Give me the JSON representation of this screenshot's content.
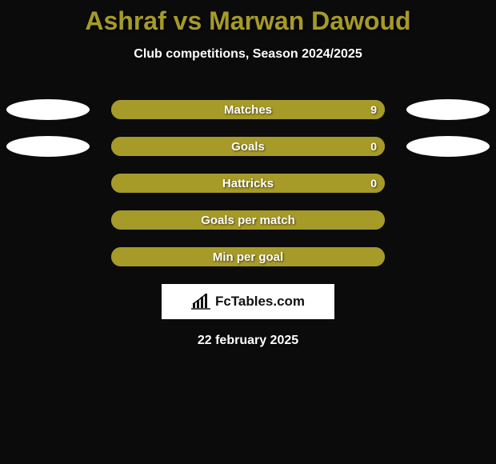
{
  "title": "Ashraf vs Marwan Dawoud",
  "title_color": "#a69a28",
  "subtitle": "Club competitions, Season 2024/2025",
  "bar_bg_color": "#a69a28",
  "bar_fill_color": "#a69a28",
  "ellipse_rows": [
    0,
    1
  ],
  "rows": [
    {
      "label": "Matches",
      "right_value": "9",
      "fill_pct": 100
    },
    {
      "label": "Goals",
      "right_value": "0",
      "fill_pct": 100
    },
    {
      "label": "Hattricks",
      "right_value": "0",
      "fill_pct": 100
    },
    {
      "label": "Goals per match",
      "right_value": "",
      "fill_pct": 100
    },
    {
      "label": "Min per goal",
      "right_value": "",
      "fill_pct": 100
    }
  ],
  "logo_text": "FcTables.com",
  "date_text": "22 february 2025"
}
